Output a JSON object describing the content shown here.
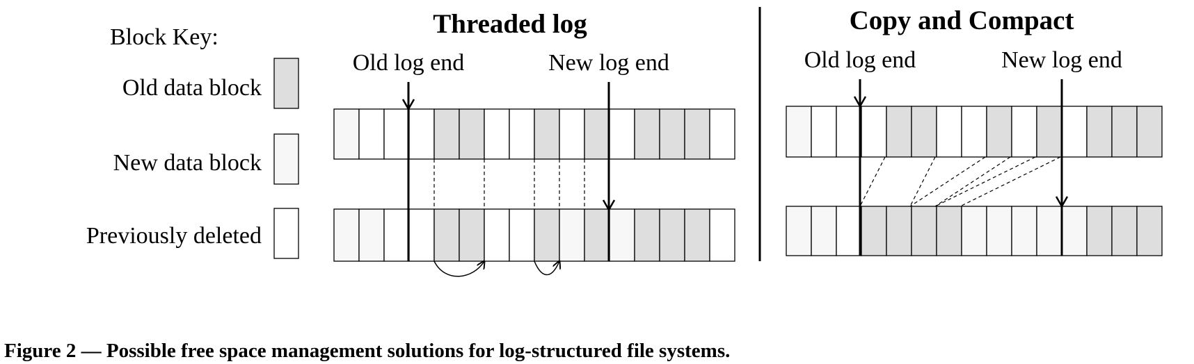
{
  "colors": {
    "old_block": "#dedede",
    "new_block": "#f7f7f7",
    "deleted_block": "#ffffff",
    "stroke": "#000000"
  },
  "key": {
    "heading": "Block Key:",
    "old_label": "Old data block",
    "new_label": "New data block",
    "deleted_label": "Previously deleted"
  },
  "threaded": {
    "title": "Threaded log",
    "old_end_label": "Old log end",
    "new_end_label": "New log end",
    "before": [
      "new",
      "deleted",
      "deleted",
      "deleted",
      "old",
      "old",
      "deleted",
      "deleted",
      "old",
      "deleted",
      "old",
      "deleted",
      "old",
      "old",
      "old",
      "deleted"
    ],
    "after": [
      "new",
      "new",
      "deleted",
      "deleted",
      "old",
      "old",
      "deleted",
      "deleted",
      "old",
      "new",
      "old",
      "new",
      "old",
      "old",
      "old",
      "deleted"
    ]
  },
  "compact": {
    "title": "Copy and Compact",
    "old_end_label": "Old log end",
    "new_end_label": "New log end",
    "before": [
      "new",
      "deleted",
      "deleted",
      "deleted",
      "old",
      "old",
      "deleted",
      "deleted",
      "old",
      "deleted",
      "old",
      "deleted",
      "old",
      "old",
      "old"
    ],
    "after": [
      "new",
      "new",
      "deleted",
      "old",
      "old",
      "old",
      "old",
      "new",
      "new",
      "new",
      "new",
      "new",
      "old",
      "old",
      "old"
    ]
  },
  "caption": "Figure 2 — Possible free space management solutions for log-structured file systems."
}
